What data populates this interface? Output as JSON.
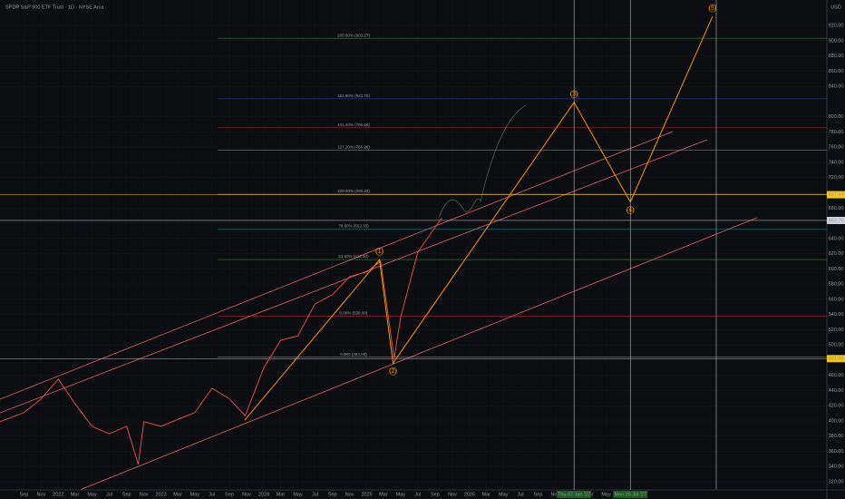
{
  "chart_data": {
    "type": "line",
    "title": "SPDR S&P 500 ETF Trust · 1D · NYSE Arca",
    "currency": "USD",
    "xlim": [
      "2021-06-08",
      "2029-06-23"
    ],
    "ylim": [
      309.3,
      953.6
    ],
    "xticks": [
      {
        "value": "2021-09-01",
        "label": "Sep"
      },
      {
        "value": "2021-11-01",
        "label": "Nov"
      },
      {
        "value": "2022-01-01",
        "label": "2022"
      },
      {
        "value": "2022-03-01",
        "label": "Mar"
      },
      {
        "value": "2022-05-01",
        "label": "May"
      },
      {
        "value": "2022-07-01",
        "label": "Jul"
      },
      {
        "value": "2022-09-01",
        "label": "Sep"
      },
      {
        "value": "2022-11-01",
        "label": "Nov"
      },
      {
        "value": "2023-01-01",
        "label": "2023"
      },
      {
        "value": "2023-03-01",
        "label": "Mar"
      },
      {
        "value": "2023-05-01",
        "label": "May"
      },
      {
        "value": "2023-07-01",
        "label": "Jul"
      },
      {
        "value": "2023-09-01",
        "label": "Sep"
      },
      {
        "value": "2023-11-01",
        "label": "Nov"
      },
      {
        "value": "2024-01-01",
        "label": "2024"
      },
      {
        "value": "2024-03-01",
        "label": "Mar"
      },
      {
        "value": "2024-05-01",
        "label": "May"
      },
      {
        "value": "2024-07-01",
        "label": "Jul"
      },
      {
        "value": "2024-09-01",
        "label": "Sep"
      },
      {
        "value": "2024-11-01",
        "label": "Nov"
      },
      {
        "value": "2025-01-01",
        "label": "2025"
      },
      {
        "value": "2025-03-01",
        "label": "Mar"
      },
      {
        "value": "2025-05-01",
        "label": "May"
      },
      {
        "value": "2025-07-01",
        "label": "Jul"
      },
      {
        "value": "2025-09-01",
        "label": "Sep"
      },
      {
        "value": "2025-11-01",
        "label": "Nov"
      },
      {
        "value": "2026-01-01",
        "label": "2026"
      },
      {
        "value": "2026-03-01",
        "label": "Mar"
      },
      {
        "value": "2026-05-01",
        "label": "May"
      },
      {
        "value": "2026-07-01",
        "label": "Jul"
      },
      {
        "value": "2026-09-01",
        "label": "Sep"
      },
      {
        "value": "2026-11-01",
        "label": "Nov"
      },
      {
        "value": "2027-03-01",
        "label": "Mar"
      },
      {
        "value": "2027-05-01",
        "label": "May"
      }
    ],
    "x_markers": [
      {
        "value": "2027-01-07",
        "label": "Thu 07 Jan '27"
      },
      {
        "value": "2027-07-26",
        "label": "Mon 26 Jul '27"
      }
    ],
    "yticks": [
      {
        "value": 320,
        "label": "320.00"
      },
      {
        "value": 340,
        "label": "340.00"
      },
      {
        "value": 360,
        "label": "360.00"
      },
      {
        "value": 380,
        "label": "380.00"
      },
      {
        "value": 400,
        "label": "400.00"
      },
      {
        "value": 420,
        "label": "420.00"
      },
      {
        "value": 440,
        "label": "440.00"
      },
      {
        "value": 460,
        "label": "460.00"
      },
      {
        "value": 500,
        "label": "500.00"
      },
      {
        "value": 520,
        "label": "520.00"
      },
      {
        "value": 540,
        "label": "540.00"
      },
      {
        "value": 560,
        "label": "560.00"
      },
      {
        "value": 580,
        "label": "580.00"
      },
      {
        "value": 600,
        "label": "600.00"
      },
      {
        "value": 620,
        "label": "620.00"
      },
      {
        "value": 640,
        "label": "640.00"
      },
      {
        "value": 680,
        "label": "680.00"
      },
      {
        "value": 720,
        "label": "720.00"
      },
      {
        "value": 740,
        "label": "740.00"
      },
      {
        "value": 760,
        "label": "760.00"
      },
      {
        "value": 780,
        "label": "780.00"
      },
      {
        "value": 800,
        "label": "800.00"
      },
      {
        "value": 840,
        "label": "840.00"
      },
      {
        "value": 860,
        "label": "860.00"
      },
      {
        "value": 880,
        "label": "880.00"
      },
      {
        "value": 900,
        "label": "900.00"
      },
      {
        "value": 920,
        "label": "920.00"
      }
    ],
    "price_tags": [
      {
        "value": 697.54,
        "label": "697.54",
        "color": "#f5c518"
      },
      {
        "value": 663.7,
        "label": "663.70",
        "color": "#d1d4dc"
      },
      {
        "value": 481.98,
        "label": "481.98",
        "color": "#f5c518"
      }
    ],
    "levels": [
      {
        "value": 903.27,
        "label": "200.00% (903.27)",
        "color": "#4caf50"
      },
      {
        "value": 823.7,
        "label": "161.80% (823.70)",
        "color": "#2962ff"
      },
      {
        "value": 785.66,
        "label": "141.40% (785.66)",
        "color": "#f23645"
      },
      {
        "value": 756.26,
        "label": "127.20% (756.26)",
        "color": "#ff9800"
      },
      {
        "value": 698.22,
        "label": "100.00% (698.22)",
        "color": "#b2b5be"
      },
      {
        "value": 652.33,
        "label": "78.60% (652.33)",
        "color": "#00bcd4"
      },
      {
        "value": 612.3,
        "label": "61.80% (612.30)",
        "color": "#4caf50"
      },
      {
        "value": 538.0,
        "label": "0.00% (538.00)",
        "color": "#f23645"
      },
      {
        "value": 484.0,
        "label": "0.000 (484.00)",
        "color": "#b2b5be"
      }
    ],
    "series": [
      {
        "name": "SPY",
        "color": "#ef5350",
        "x": [
          "2021-06-08",
          "2021-09-01",
          "2021-11-01",
          "2022-01-01",
          "2022-03-01",
          "2022-05-01",
          "2022-07-01",
          "2022-09-01",
          "2022-10-12",
          "2022-11-01",
          "2023-01-01",
          "2023-03-01",
          "2023-05-01",
          "2023-07-01",
          "2023-09-01",
          "2023-10-27",
          "2024-01-01",
          "2024-03-01",
          "2024-05-01",
          "2024-07-01",
          "2024-09-01",
          "2024-11-01",
          "2025-01-01",
          "2025-02-19",
          "2025-04-08",
          "2025-05-01",
          "2025-07-01",
          "2025-09-01",
          "2025-09-25"
        ],
        "values": [
          399,
          411,
          429,
          455,
          423,
          393,
          383,
          393,
          343,
          399,
          393,
          402,
          411,
          443,
          429,
          407,
          470,
          506,
          512,
          554,
          566,
          590,
          596,
          610,
          482,
          536,
          622,
          655,
          667
        ]
      },
      {
        "name": "Waves",
        "color": "#ff9800",
        "x": [
          "2023-10-25",
          "2025-02-15",
          "2025-04-04",
          "2027-01-07",
          "2027-07-26",
          "2028-05-13"
        ],
        "values": [
          401,
          612,
          476,
          819,
          688,
          932
        ],
        "labels": [
          null,
          "(1)",
          "(2)",
          "(3)",
          "(4)",
          "(5)"
        ]
      }
    ]
  }
}
